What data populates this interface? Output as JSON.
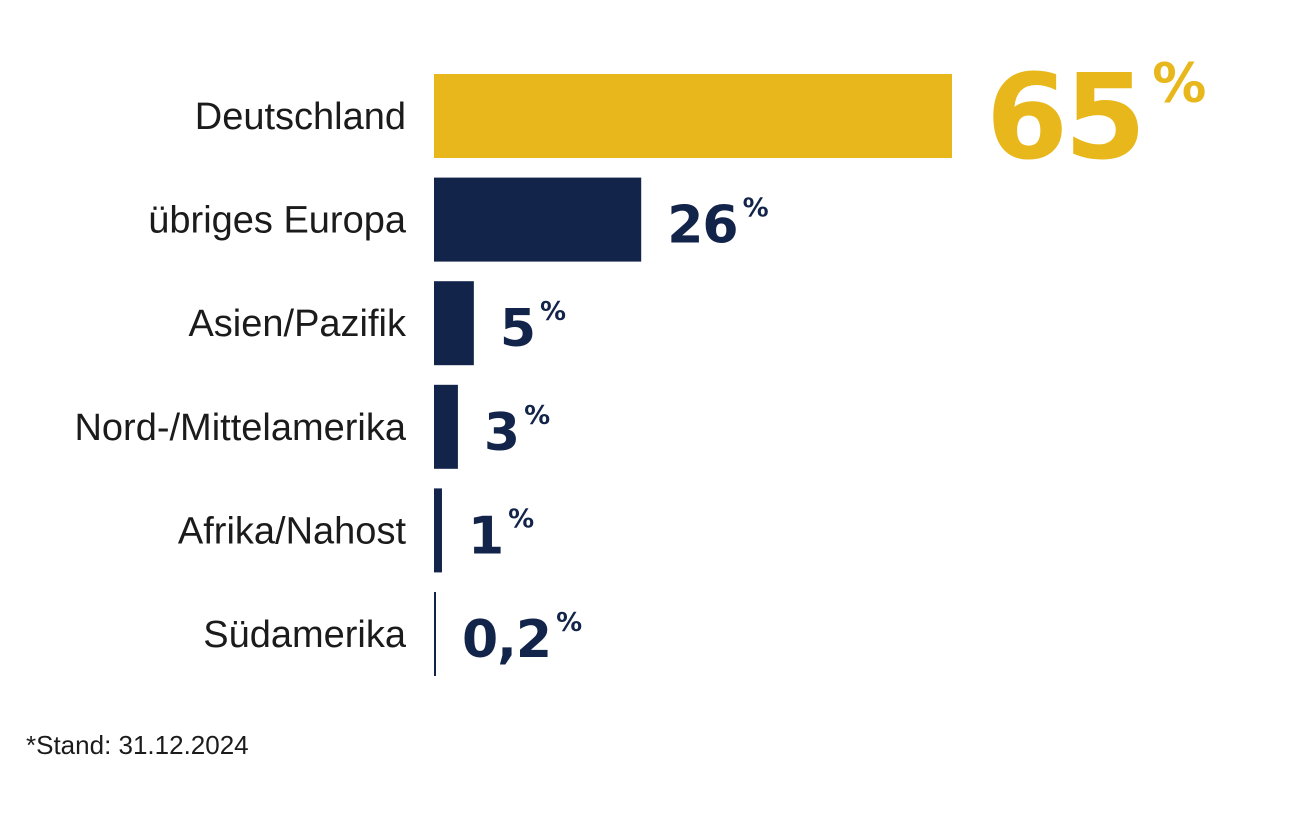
{
  "chart_data": {
    "type": "bar",
    "orientation": "horizontal",
    "categories": [
      "Deutschland",
      "übriges Europa",
      "Asien/Pazifik",
      "Nord-/Mittelamerika",
      "Afrika/Nahost",
      "Südamerika"
    ],
    "values": [
      65,
      26,
      5,
      3,
      1,
      0.2
    ],
    "value_labels": [
      "65",
      "26",
      "5",
      "3",
      "1",
      "0,2"
    ],
    "unit": "%",
    "highlight_index": 0,
    "colors": {
      "highlight": "#E8B71B",
      "default": "#13244A"
    },
    "xlim": [
      0,
      65
    ],
    "grid": false,
    "legend": "none"
  },
  "footnote": "*Stand: 31.12.2024"
}
